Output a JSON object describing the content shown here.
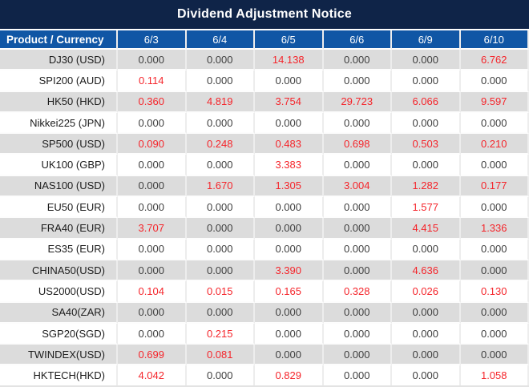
{
  "title": "Dividend Adjustment Notice",
  "colors": {
    "title_bg": "#0F2448",
    "header_bg": "#1056A5",
    "row_alt_bg": "#DCDCDC",
    "row_bg": "#FFFFFF",
    "highlight_red": "#F5252B",
    "header_text": "#FFFFFF",
    "value_text": "#404040"
  },
  "table": {
    "product_header": "Product / Currency",
    "date_columns": [
      "6/3",
      "6/4",
      "6/5",
      "6/6",
      "6/9",
      "6/10"
    ],
    "rows": [
      {
        "product": "DJ30 (USD)",
        "values": [
          "0.000",
          "0.000",
          "14.138",
          "0.000",
          "0.000",
          "6.762"
        ],
        "red": [
          false,
          false,
          true,
          false,
          false,
          true
        ]
      },
      {
        "product": "SPI200 (AUD)",
        "values": [
          "0.114",
          "0.000",
          "0.000",
          "0.000",
          "0.000",
          "0.000"
        ],
        "red": [
          true,
          false,
          false,
          false,
          false,
          false
        ]
      },
      {
        "product": "HK50 (HKD)",
        "values": [
          "0.360",
          "4.819",
          "3.754",
          "29.723",
          "6.066",
          "9.597"
        ],
        "red": [
          true,
          true,
          true,
          true,
          true,
          true
        ]
      },
      {
        "product": "Nikkei225 (JPN)",
        "values": [
          "0.000",
          "0.000",
          "0.000",
          "0.000",
          "0.000",
          "0.000"
        ],
        "red": [
          false,
          false,
          false,
          false,
          false,
          false
        ]
      },
      {
        "product": "SP500 (USD)",
        "values": [
          "0.090",
          "0.248",
          "0.483",
          "0.698",
          "0.503",
          "0.210"
        ],
        "red": [
          true,
          true,
          true,
          true,
          true,
          true
        ]
      },
      {
        "product": "UK100 (GBP)",
        "values": [
          "0.000",
          "0.000",
          "3.383",
          "0.000",
          "0.000",
          "0.000"
        ],
        "red": [
          false,
          false,
          true,
          false,
          false,
          false
        ]
      },
      {
        "product": "NAS100 (USD)",
        "values": [
          "0.000",
          "1.670",
          "1.305",
          "3.004",
          "1.282",
          "0.177"
        ],
        "red": [
          false,
          true,
          true,
          true,
          true,
          true
        ]
      },
      {
        "product": "EU50 (EUR)",
        "values": [
          "0.000",
          "0.000",
          "0.000",
          "0.000",
          "1.577",
          "0.000"
        ],
        "red": [
          false,
          false,
          false,
          false,
          true,
          false
        ]
      },
      {
        "product": "FRA40 (EUR)",
        "values": [
          "3.707",
          "0.000",
          "0.000",
          "0.000",
          "4.415",
          "1.336"
        ],
        "red": [
          true,
          false,
          false,
          false,
          true,
          true
        ]
      },
      {
        "product": "ES35 (EUR)",
        "values": [
          "0.000",
          "0.000",
          "0.000",
          "0.000",
          "0.000",
          "0.000"
        ],
        "red": [
          false,
          false,
          false,
          false,
          false,
          false
        ]
      },
      {
        "product": "CHINA50(USD)",
        "values": [
          "0.000",
          "0.000",
          "3.390",
          "0.000",
          "4.636",
          "0.000"
        ],
        "red": [
          false,
          false,
          true,
          false,
          true,
          false
        ]
      },
      {
        "product": "US2000(USD)",
        "values": [
          "0.104",
          "0.015",
          "0.165",
          "0.328",
          "0.026",
          "0.130"
        ],
        "red": [
          true,
          true,
          true,
          true,
          true,
          true
        ]
      },
      {
        "product": "SA40(ZAR)",
        "values": [
          "0.000",
          "0.000",
          "0.000",
          "0.000",
          "0.000",
          "0.000"
        ],
        "red": [
          false,
          false,
          false,
          false,
          false,
          false
        ]
      },
      {
        "product": "SGP20(SGD)",
        "values": [
          "0.000",
          "0.215",
          "0.000",
          "0.000",
          "0.000",
          "0.000"
        ],
        "red": [
          false,
          true,
          false,
          false,
          false,
          false
        ]
      },
      {
        "product": "TWINDEX(USD)",
        "values": [
          "0.699",
          "0.081",
          "0.000",
          "0.000",
          "0.000",
          "0.000"
        ],
        "red": [
          true,
          true,
          false,
          false,
          false,
          false
        ]
      },
      {
        "product": "HKTECH(HKD)",
        "values": [
          "4.042",
          "0.000",
          "0.829",
          "0.000",
          "0.000",
          "1.058"
        ],
        "red": [
          true,
          false,
          true,
          false,
          false,
          true
        ]
      }
    ]
  }
}
